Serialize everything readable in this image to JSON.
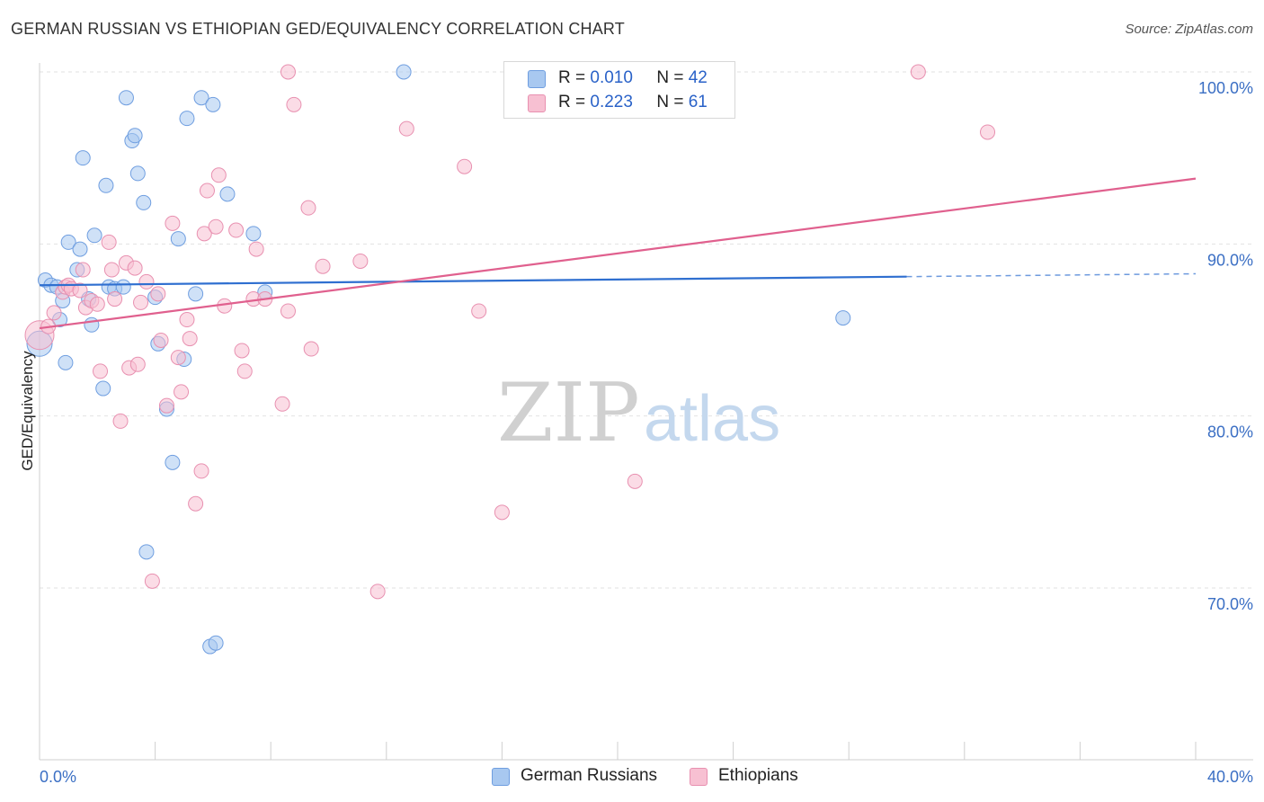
{
  "title": "GERMAN RUSSIAN VS ETHIOPIAN GED/EQUIVALENCY CORRELATION CHART",
  "source": "Source: ZipAtlas.com",
  "watermark": {
    "zip": "ZIP",
    "atlas": "atlas"
  },
  "legend": {
    "r_label": "R =",
    "n_label": "N =",
    "rows": [
      {
        "r": "0.010",
        "n": "42",
        "color": "#a8c8f0",
        "border": "#6f9ee0"
      },
      {
        "r": "0.223",
        "n": "61",
        "color": "#f7c0d2",
        "border": "#e890b0"
      }
    ]
  },
  "bottom_legend": [
    {
      "label": "German Russians",
      "color": "#a8c8f0",
      "border": "#6f9ee0"
    },
    {
      "label": "Ethiopians",
      "color": "#f7c0d2",
      "border": "#e890b0"
    }
  ],
  "chart_data": {
    "type": "scatter",
    "title": "GERMAN RUSSIAN VS ETHIOPIAN GED/EQUIVALENCY CORRELATION CHART",
    "xlabel": "",
    "ylabel": "GED/Equivalency",
    "xlim": [
      0.0,
      40.0
    ],
    "ylim": [
      60.0,
      101.0
    ],
    "x_tick_labels": [
      "0.0%",
      "40.0%"
    ],
    "y_ticks": [
      70.0,
      80.0,
      90.0,
      100.0
    ],
    "y_tick_labels": [
      "70.0%",
      "80.0%",
      "90.0%",
      "100.0%"
    ],
    "grid": true,
    "legend_position": "top-center",
    "series": [
      {
        "name": "German Russians",
        "color": "#6f9ee0",
        "fill": "#a8c8f0",
        "trend": {
          "x": [
            0.0,
            30.0
          ],
          "y": [
            87.6,
            88.1
          ],
          "dashed_to": 40.0,
          "color": "#2f6fd0"
        },
        "points": [
          [
            0.0,
            84.2
          ],
          [
            0.2,
            87.9
          ],
          [
            0.4,
            87.6
          ],
          [
            0.6,
            87.5
          ],
          [
            0.7,
            85.6
          ],
          [
            0.8,
            86.7
          ],
          [
            0.9,
            83.1
          ],
          [
            1.0,
            90.1
          ],
          [
            1.3,
            88.5
          ],
          [
            1.4,
            89.7
          ],
          [
            1.5,
            95.0
          ],
          [
            1.7,
            86.8
          ],
          [
            1.8,
            85.3
          ],
          [
            1.9,
            90.5
          ],
          [
            2.2,
            81.6
          ],
          [
            2.3,
            93.4
          ],
          [
            2.4,
            87.5
          ],
          [
            2.6,
            87.4
          ],
          [
            2.9,
            87.5
          ],
          [
            3.0,
            98.5
          ],
          [
            3.2,
            96.0
          ],
          [
            3.3,
            96.3
          ],
          [
            3.4,
            94.1
          ],
          [
            3.6,
            92.4
          ],
          [
            3.7,
            72.1
          ],
          [
            4.0,
            86.9
          ],
          [
            4.1,
            84.2
          ],
          [
            4.4,
            80.4
          ],
          [
            4.6,
            77.3
          ],
          [
            4.8,
            90.3
          ],
          [
            5.0,
            83.3
          ],
          [
            5.1,
            97.3
          ],
          [
            5.4,
            87.1
          ],
          [
            5.6,
            98.5
          ],
          [
            5.9,
            66.6
          ],
          [
            6.0,
            98.1
          ],
          [
            6.1,
            66.8
          ],
          [
            6.5,
            92.9
          ],
          [
            7.4,
            90.6
          ],
          [
            7.8,
            87.2
          ],
          [
            12.6,
            100.0
          ],
          [
            27.8,
            85.7
          ]
        ]
      },
      {
        "name": "Ethiopians",
        "color": "#e890b0",
        "fill": "#f7c0d2",
        "trend": {
          "x": [
            0.0,
            40.0
          ],
          "y": [
            85.1,
            93.8
          ],
          "color": "#e0608e"
        },
        "points": [
          [
            0.0,
            84.7
          ],
          [
            0.3,
            85.2
          ],
          [
            0.5,
            86.0
          ],
          [
            0.8,
            87.2
          ],
          [
            0.9,
            87.5
          ],
          [
            1.0,
            87.6
          ],
          [
            1.1,
            87.4
          ],
          [
            1.4,
            87.3
          ],
          [
            1.5,
            88.5
          ],
          [
            1.6,
            86.3
          ],
          [
            1.8,
            86.7
          ],
          [
            2.0,
            86.5
          ],
          [
            2.1,
            82.6
          ],
          [
            2.4,
            90.1
          ],
          [
            2.5,
            88.5
          ],
          [
            2.6,
            86.8
          ],
          [
            2.8,
            79.7
          ],
          [
            3.0,
            88.9
          ],
          [
            3.1,
            82.8
          ],
          [
            3.3,
            88.6
          ],
          [
            3.4,
            83.0
          ],
          [
            3.5,
            86.6
          ],
          [
            3.7,
            87.8
          ],
          [
            3.9,
            70.4
          ],
          [
            4.1,
            87.1
          ],
          [
            4.2,
            84.4
          ],
          [
            4.4,
            80.6
          ],
          [
            4.6,
            91.2
          ],
          [
            4.8,
            83.4
          ],
          [
            4.9,
            81.4
          ],
          [
            5.1,
            85.6
          ],
          [
            5.2,
            84.5
          ],
          [
            5.6,
            76.8
          ],
          [
            5.4,
            74.9
          ],
          [
            5.8,
            93.1
          ],
          [
            5.7,
            90.6
          ],
          [
            6.1,
            91.0
          ],
          [
            6.2,
            94.0
          ],
          [
            6.4,
            86.4
          ],
          [
            6.8,
            90.8
          ],
          [
            7.0,
            83.8
          ],
          [
            7.1,
            82.6
          ],
          [
            7.4,
            86.8
          ],
          [
            7.5,
            89.7
          ],
          [
            7.8,
            86.8
          ],
          [
            8.4,
            80.7
          ],
          [
            8.6,
            86.1
          ],
          [
            8.8,
            98.1
          ],
          [
            8.6,
            100.0
          ],
          [
            9.3,
            92.1
          ],
          [
            9.4,
            83.9
          ],
          [
            9.8,
            88.7
          ],
          [
            11.1,
            89.0
          ],
          [
            11.7,
            69.8
          ],
          [
            12.7,
            96.7
          ],
          [
            14.7,
            94.5
          ],
          [
            15.2,
            86.1
          ],
          [
            16.0,
            74.4
          ],
          [
            20.6,
            76.2
          ],
          [
            30.4,
            100.0
          ],
          [
            32.8,
            96.5
          ]
        ]
      }
    ]
  }
}
